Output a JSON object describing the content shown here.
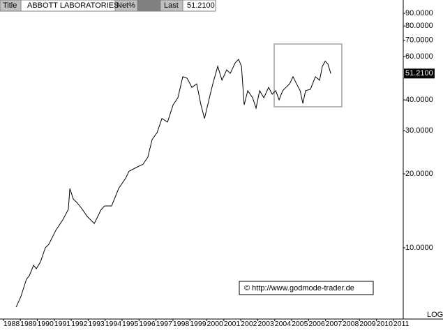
{
  "header": {
    "title_label": "Title",
    "name": "ABBOTT LABORATORIES",
    "net_label": "Net%",
    "last_label": "Last",
    "last": {
      "value": 51.21,
      "label": "51.2100"
    }
  },
  "chart_data": {
    "type": "line",
    "name": "ABBOTT LABORATORIES",
    "color": "#000000",
    "log_scale": true,
    "annotation": "© http://www.godmode-trader.de",
    "scale_label": "LOG",
    "x": [
      1988.75,
      1989.03,
      1989.36,
      1989.53,
      1989.78,
      1989.94,
      1990.19,
      1990.47,
      1990.68,
      1991.09,
      1991.5,
      1991.83,
      1991.92,
      1992.12,
      1992.33,
      1992.66,
      1992.94,
      1993.36,
      1993.77,
      1993.97,
      1994.38,
      1994.8,
      1995.21,
      1995.41,
      1995.82,
      1996.24,
      1996.52,
      1996.77,
      1997.06,
      1997.35,
      1997.68,
      1998.01,
      1998.29,
      1998.58,
      1998.83,
      1999.12,
      1999.4,
      1999.65,
      1999.86,
      2000.15,
      2000.35,
      2000.64,
      2000.89,
      2001.17,
      2001.38,
      2001.67,
      2001.87,
      2002.04,
      2002.2,
      2002.41,
      2002.7,
      2002.9,
      2003.11,
      2003.36,
      2003.64,
      2003.85,
      2004.06,
      2004.26,
      2004.47,
      2004.67,
      2004.88,
      2005.08,
      2005.29,
      2005.5,
      2005.66,
      2005.82,
      2006.11,
      2006.4,
      2006.65,
      2006.81,
      2006.98,
      2007.14,
      2007.31
    ],
    "values": [
      5.73,
      6.33,
      7.45,
      7.7,
      8.49,
      8.22,
      8.77,
      10,
      10.33,
      11.78,
      12.99,
      14.33,
      17.45,
      15.8,
      15.3,
      14.33,
      13.42,
      12.56,
      14.33,
      14.8,
      14.8,
      17.45,
      19.2,
      20.5,
      21.2,
      21.9,
      23.4,
      27.6,
      29.4,
      33.6,
      32.5,
      38.2,
      40.8,
      49.7,
      49,
      45,
      46.5,
      38.2,
      33.6,
      40.8,
      46.5,
      54.8,
      48.1,
      53,
      51.3,
      56.6,
      58.5,
      54.8,
      38.2,
      43.6,
      40.8,
      37,
      43.6,
      40.8,
      45,
      42.2,
      43.6,
      40,
      43.6,
      45,
      46.5,
      49.7,
      46.5,
      43.6,
      38.7,
      43.6,
      44.2,
      49.7,
      48.1,
      54.8,
      57.4,
      55.9,
      51.21
    ],
    "xlim": [
      1987.8,
      2011.58
    ],
    "xticks": [
      1988,
      1989,
      1990,
      1991,
      1992,
      1993,
      1994,
      1995,
      1996,
      1997,
      1998,
      1999,
      2000,
      2001,
      2002,
      2003,
      2004,
      2005,
      2006,
      2007,
      2008,
      2009,
      2010,
      2011
    ],
    "ylim": [
      5.13,
      102
    ],
    "yticks": [
      {
        "value": 10,
        "label": "10.0000"
      },
      {
        "value": 20,
        "label": "20.0000"
      },
      {
        "value": 30,
        "label": "30.0000"
      },
      {
        "value": 40,
        "label": "40.0000"
      },
      {
        "value": 60,
        "label": "60.0000"
      },
      {
        "value": 70,
        "label": "70.0000"
      },
      {
        "value": 80,
        "label": "80.0000"
      },
      {
        "value": 90,
        "label": "90.0000"
      }
    ]
  }
}
